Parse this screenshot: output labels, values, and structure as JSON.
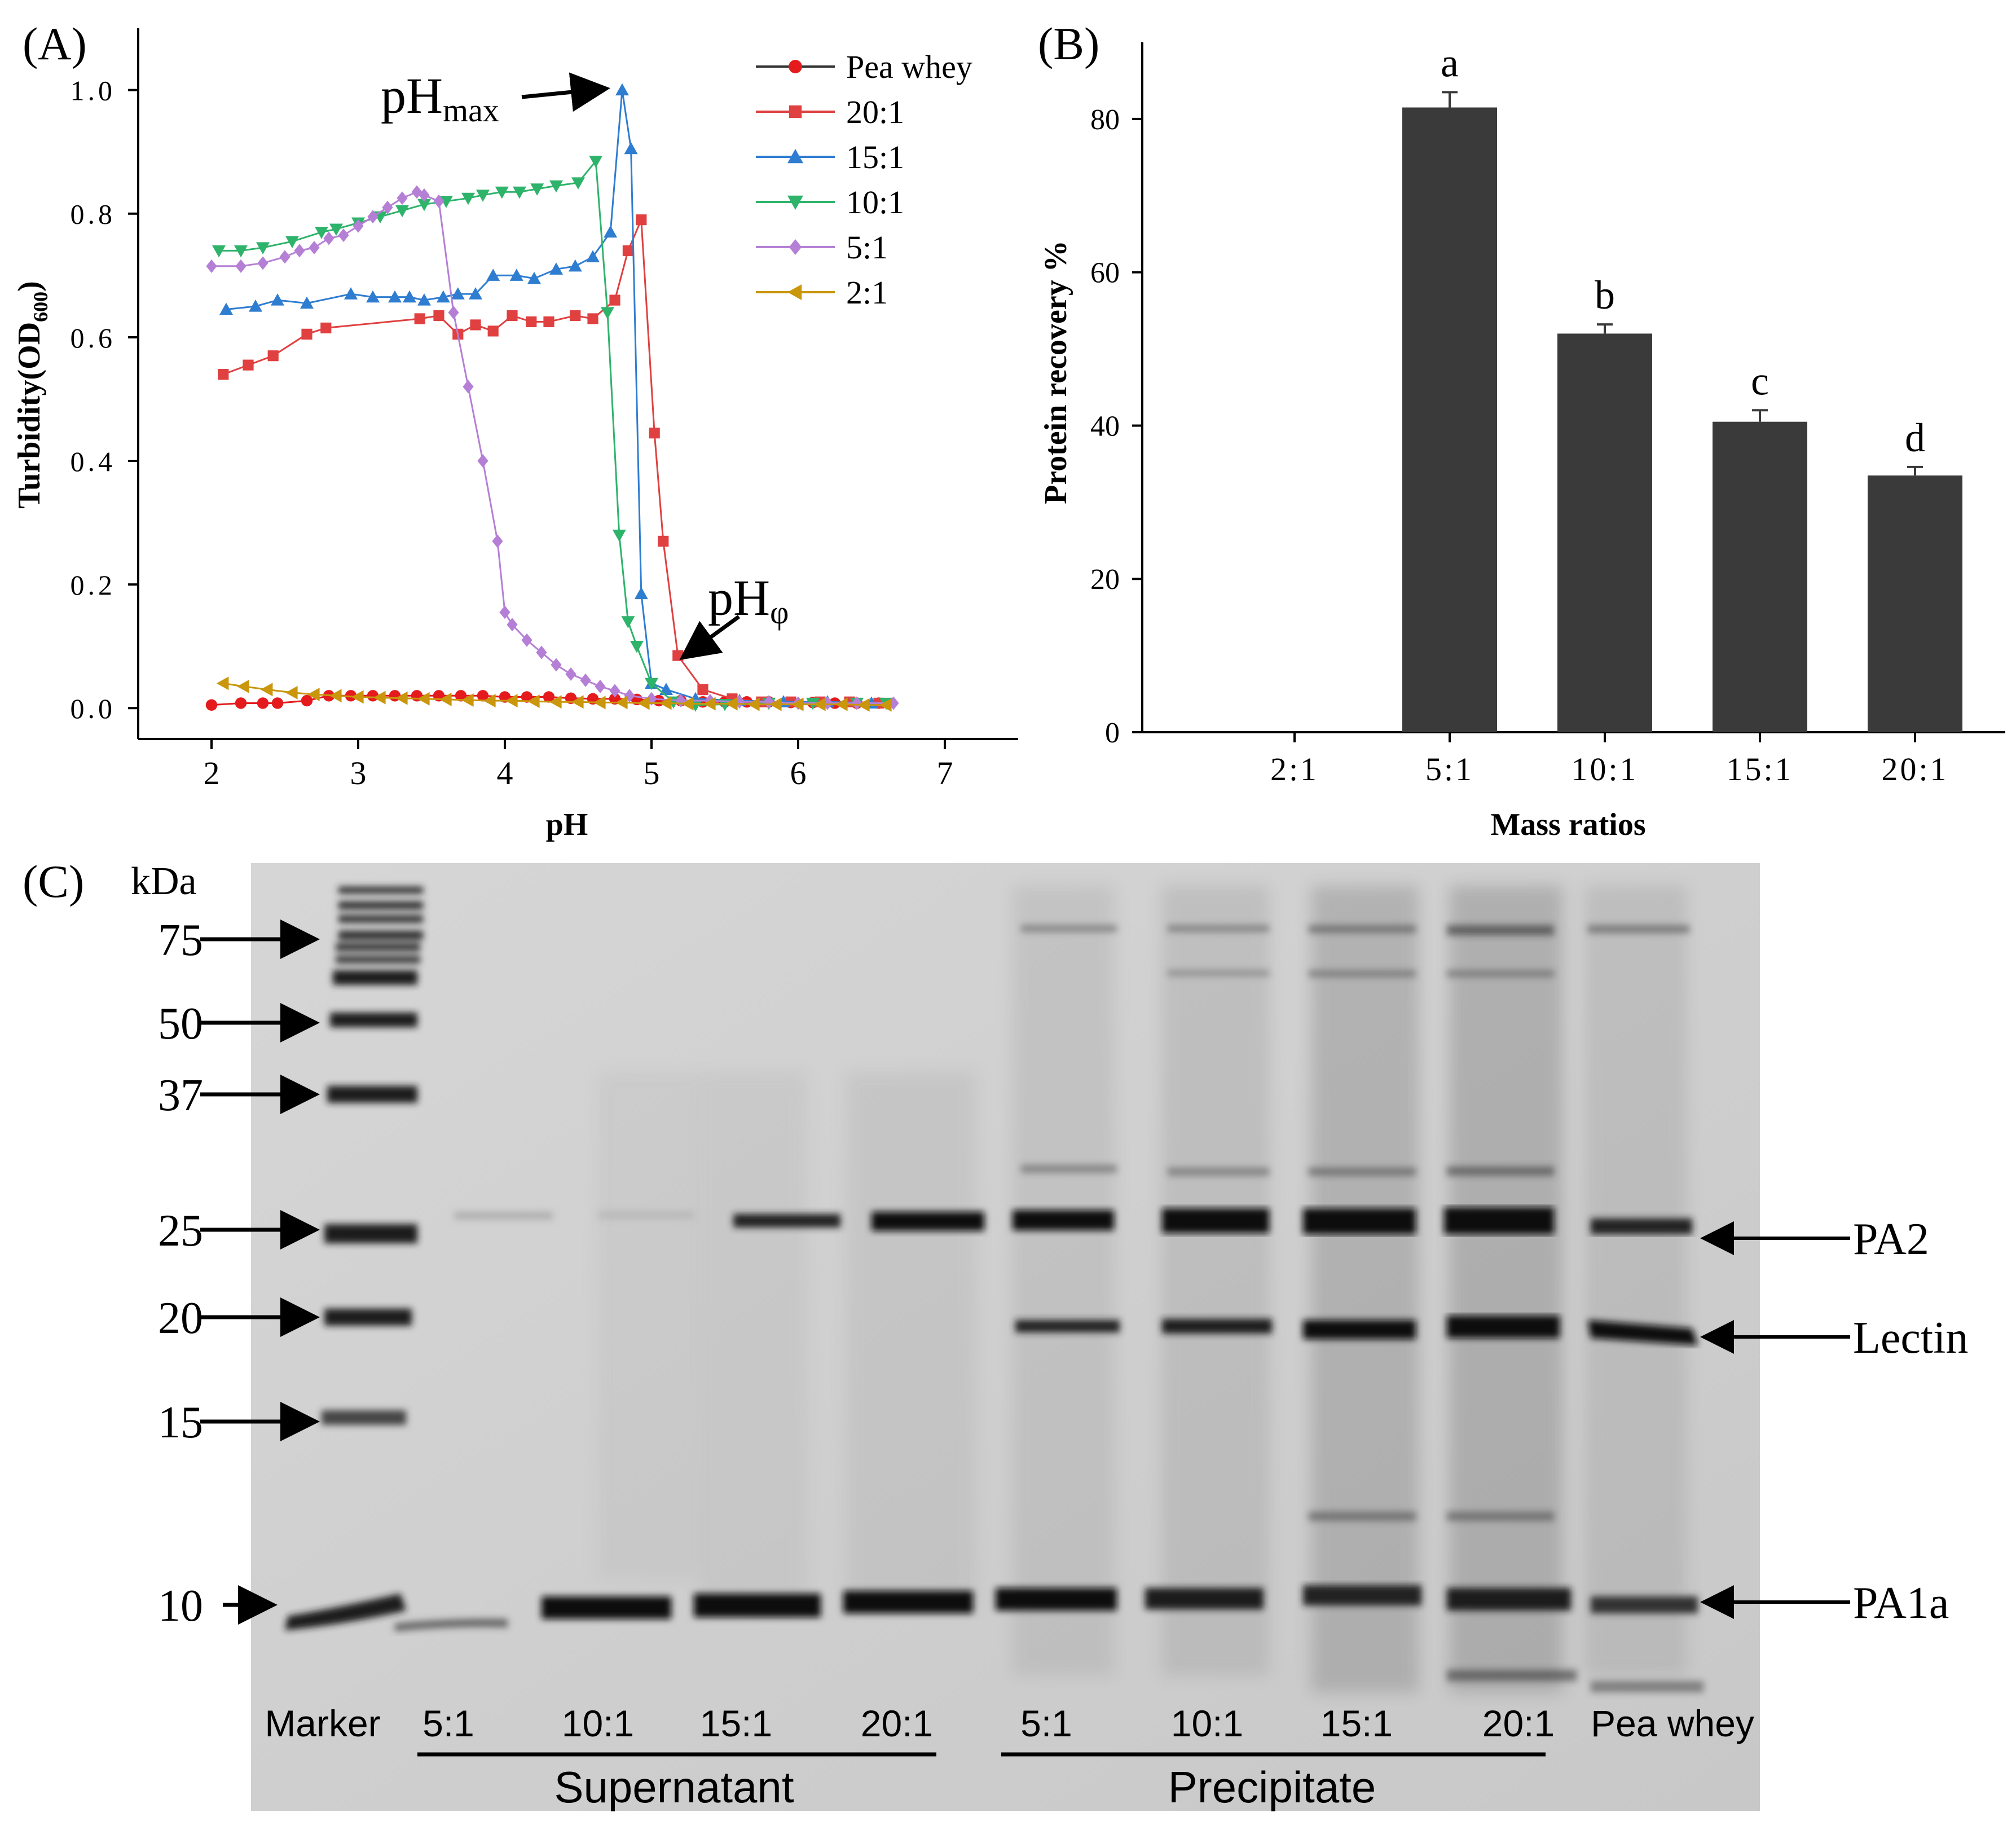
{
  "chart_data": [
    {
      "panel": "(A)",
      "type": "line",
      "xlabel": "pH",
      "ylabel_main": "Turbidity(OD",
      "ylabel_sub": "600",
      "ylabel_end": ")",
      "xlim": [
        1.5,
        7.5
      ],
      "ylim": [
        -0.05,
        1.1
      ],
      "xticks": [
        2,
        3,
        4,
        5,
        6,
        7
      ],
      "yticks": [
        0.0,
        0.2,
        0.4,
        0.6,
        0.8,
        1.0
      ],
      "ytick_labels": [
        "0.0",
        "0.2",
        "0.4",
        "0.6",
        "0.8",
        "1.0"
      ],
      "annotations": [
        {
          "main": "pH",
          "sub": "max",
          "target": [
            4.8,
            1.0
          ]
        },
        {
          "main": "pH",
          "sub": "φ",
          "target": [
            5.2,
            0.07
          ]
        }
      ],
      "series": [
        {
          "name": "Pea whey",
          "color": "#e41a1c",
          "marker": "circle",
          "x": [
            2.0,
            2.2,
            2.35,
            2.45,
            2.65,
            2.8,
            2.95,
            3.1,
            3.25,
            3.4,
            3.55,
            3.7,
            3.85,
            4.0,
            4.15,
            4.3,
            4.45,
            4.6,
            4.75,
            4.9,
            5.05,
            5.2,
            5.35,
            5.5,
            5.65,
            5.8,
            5.95,
            6.1,
            6.25,
            6.4,
            6.55
          ],
          "y": [
            0.005,
            0.008,
            0.008,
            0.008,
            0.012,
            0.02,
            0.02,
            0.02,
            0.02,
            0.02,
            0.02,
            0.02,
            0.02,
            0.018,
            0.018,
            0.018,
            0.016,
            0.015,
            0.015,
            0.014,
            0.012,
            0.012,
            0.01,
            0.01,
            0.01,
            0.01,
            0.009,
            0.009,
            0.008,
            0.008,
            0.008
          ]
        },
        {
          "name": "20:1",
          "color": "#e04040",
          "marker": "square",
          "x": [
            2.08,
            2.25,
            2.42,
            2.65,
            2.78,
            3.42,
            3.55,
            3.68,
            3.8,
            3.92,
            4.05,
            4.18,
            4.3,
            4.48,
            4.6,
            4.75,
            4.84,
            4.93,
            5.02,
            5.08,
            5.18,
            5.35,
            5.55,
            5.75,
            5.95,
            6.15,
            6.35,
            6.55
          ],
          "y": [
            0.54,
            0.555,
            0.57,
            0.605,
            0.615,
            0.63,
            0.635,
            0.605,
            0.62,
            0.61,
            0.635,
            0.625,
            0.625,
            0.635,
            0.63,
            0.66,
            0.74,
            0.79,
            0.445,
            0.27,
            0.085,
            0.03,
            0.015,
            0.01,
            0.01,
            0.01,
            0.01,
            0.008
          ]
        },
        {
          "name": "15:1",
          "color": "#2e7dd1",
          "marker": "triangle-up",
          "x": [
            2.1,
            2.3,
            2.45,
            2.65,
            2.95,
            3.1,
            3.25,
            3.35,
            3.45,
            3.58,
            3.68,
            3.8,
            3.92,
            4.08,
            4.2,
            4.35,
            4.48,
            4.6,
            4.72,
            4.8,
            4.86,
            4.93,
            5.0,
            5.1,
            5.3,
            5.6,
            5.9,
            6.2,
            6.5
          ],
          "y": [
            0.645,
            0.65,
            0.66,
            0.655,
            0.67,
            0.665,
            0.665,
            0.665,
            0.66,
            0.665,
            0.67,
            0.67,
            0.7,
            0.7,
            0.695,
            0.71,
            0.715,
            0.73,
            0.77,
            1.0,
            0.905,
            0.185,
            0.04,
            0.03,
            0.015,
            0.012,
            0.01,
            0.01,
            0.008
          ]
        },
        {
          "name": "10:1",
          "color": "#2eb36b",
          "marker": "triangle-down",
          "x": [
            2.05,
            2.2,
            2.35,
            2.55,
            2.75,
            2.85,
            3.0,
            3.15,
            3.3,
            3.45,
            3.6,
            3.75,
            3.85,
            3.98,
            4.1,
            4.22,
            4.35,
            4.5,
            4.62,
            4.7,
            4.78,
            4.84,
            4.9,
            5.0,
            5.15,
            5.3,
            5.5,
            5.8,
            6.1,
            6.4,
            6.6
          ],
          "y": [
            0.74,
            0.74,
            0.745,
            0.755,
            0.77,
            0.775,
            0.785,
            0.795,
            0.805,
            0.815,
            0.82,
            0.825,
            0.83,
            0.835,
            0.835,
            0.84,
            0.845,
            0.85,
            0.885,
            0.64,
            0.28,
            0.14,
            0.1,
            0.04,
            0.01,
            0.005,
            0.006,
            0.008,
            0.008,
            0.008,
            0.008
          ]
        },
        {
          "name": "5:1",
          "color": "#b57fd6",
          "marker": "diamond",
          "x": [
            2.0,
            2.2,
            2.35,
            2.5,
            2.6,
            2.7,
            2.8,
            2.9,
            3.0,
            3.1,
            3.2,
            3.3,
            3.4,
            3.45,
            3.55,
            3.65,
            3.75,
            3.85,
            3.95,
            4.0,
            4.05,
            4.15,
            4.25,
            4.35,
            4.45,
            4.55,
            4.65,
            4.75,
            4.85,
            5.0,
            5.2,
            5.4,
            5.6,
            5.8,
            6.0,
            6.2,
            6.4,
            6.65
          ],
          "y": [
            0.715,
            0.715,
            0.72,
            0.73,
            0.74,
            0.745,
            0.76,
            0.765,
            0.78,
            0.795,
            0.81,
            0.825,
            0.835,
            0.83,
            0.82,
            0.64,
            0.52,
            0.4,
            0.27,
            0.155,
            0.135,
            0.11,
            0.09,
            0.07,
            0.055,
            0.045,
            0.035,
            0.028,
            0.02,
            0.015,
            0.012,
            0.012,
            0.01,
            0.01,
            0.008,
            0.008,
            0.008,
            0.008
          ]
        },
        {
          "name": "2:1",
          "color": "#c9960c",
          "marker": "triangle-left",
          "x": [
            2.08,
            2.22,
            2.38,
            2.55,
            2.7,
            2.85,
            3.0,
            3.15,
            3.3,
            3.45,
            3.6,
            3.75,
            3.9,
            4.05,
            4.2,
            4.35,
            4.5,
            4.65,
            4.8,
            4.95,
            5.1,
            5.25,
            5.4,
            5.55,
            5.7,
            5.85,
            6.0,
            6.15,
            6.3,
            6.45,
            6.6
          ],
          "y": [
            0.04,
            0.035,
            0.03,
            0.025,
            0.022,
            0.02,
            0.018,
            0.017,
            0.016,
            0.015,
            0.014,
            0.013,
            0.012,
            0.012,
            0.011,
            0.01,
            0.01,
            0.009,
            0.009,
            0.008,
            0.008,
            0.007,
            0.007,
            0.007,
            0.006,
            0.006,
            0.006,
            0.006,
            0.006,
            0.005,
            0.005
          ]
        }
      ]
    },
    {
      "panel": "(B)",
      "type": "bar",
      "xlabel": "Mass ratios",
      "ylabel": "Protein recovery %",
      "categories": [
        "2:1",
        "5:1",
        "10:1",
        "15:1",
        "20:1"
      ],
      "values": [
        0,
        81.5,
        52,
        40.5,
        33.5
      ],
      "errors": [
        0,
        2.0,
        1.2,
        1.5,
        1.1
      ],
      "letters": [
        "",
        "a",
        "b",
        "c",
        "d"
      ],
      "ylim": [
        0,
        90
      ],
      "yticks": [
        0,
        20,
        40,
        60,
        80
      ],
      "bar_color": "#3a3a3a"
    }
  ],
  "gel": {
    "panel": "(C)",
    "unit": "kDa",
    "marker_sizes": [
      "75",
      "50",
      "37",
      "25",
      "20",
      "15",
      "10"
    ],
    "band_labels": [
      "PA2",
      "Lectin",
      "PA1a"
    ],
    "lane_labels": [
      "Marker",
      "5:1",
      "10:1",
      "15:1",
      "20:1",
      "5:1",
      "10:1",
      "15:1",
      "20:1",
      "Pea whey"
    ],
    "groups": [
      "Supernatant",
      "Precipitate"
    ]
  }
}
